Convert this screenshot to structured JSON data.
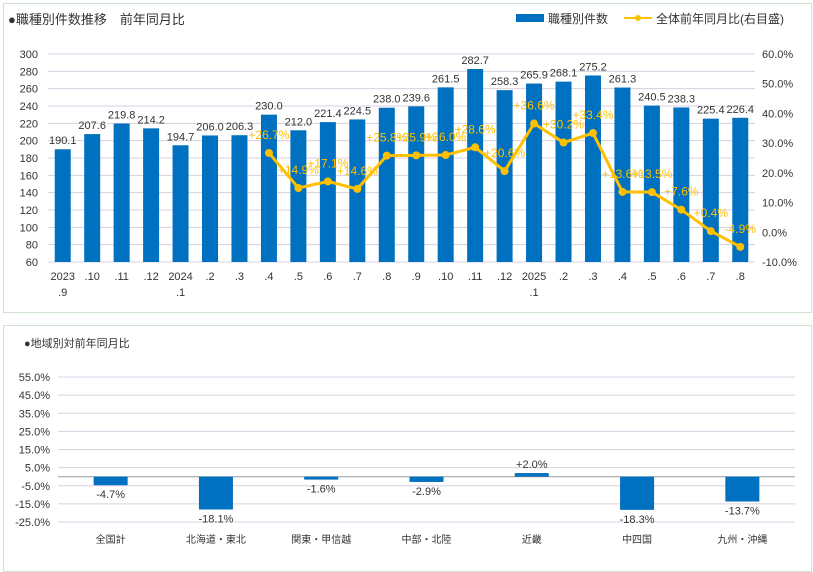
{
  "chart_data": [
    {
      "type": "bar+line",
      "title": "●職種別件数推移　前年同月比",
      "legend": [
        "職種別件数",
        "全体前年同月比(右目盛)"
      ],
      "legend_position": "top-right",
      "categories": [
        "2023\n.9",
        ".10",
        ".11",
        ".12",
        "2024\n.1",
        ".2",
        ".3",
        ".4",
        ".5",
        ".6",
        ".7",
        ".8",
        ".9",
        ".10",
        ".11",
        ".12",
        "2025\n.1",
        ".2",
        ".3",
        ".4",
        ".5",
        ".6",
        ".7",
        ".8"
      ],
      "bar_values": [
        190.1,
        207.6,
        219.8,
        214.2,
        194.7,
        206.0,
        206.3,
        230.0,
        212.0,
        221.4,
        224.5,
        238.0,
        239.6,
        261.5,
        282.7,
        258.3,
        265.9,
        268.1,
        275.2,
        261.3,
        240.5,
        238.3,
        225.4,
        226.4
      ],
      "line_values": [
        null,
        null,
        null,
        null,
        null,
        null,
        null,
        26.7,
        14.9,
        17.1,
        14.6,
        25.8,
        25.9,
        26.0,
        28.6,
        20.6,
        36.6,
        30.2,
        33.4,
        13.6,
        13.5,
        7.6,
        0.4,
        -4.9
      ],
      "ylim": [
        60,
        300
      ],
      "yticks": [
        60,
        80,
        100,
        120,
        140,
        160,
        180,
        200,
        220,
        240,
        260,
        280,
        300
      ],
      "y2lim": [
        -10,
        60
      ],
      "y2ticks": [
        "-10.0%",
        "0.0%",
        "10.0%",
        "20.0%",
        "30.0%",
        "40.0%",
        "50.0%",
        "60.0%"
      ],
      "colors": {
        "bar": "#0070c0",
        "line": "#ffc000"
      },
      "grid": true
    },
    {
      "type": "bar",
      "title": "●地域別対前年同月比",
      "categories": [
        "全国計",
        "北海道・東北",
        "関東・甲信越",
        "中部・北陸",
        "近畿",
        "中四国",
        "九州・沖縄"
      ],
      "values": [
        -4.7,
        -18.1,
        -1.6,
        -2.9,
        2.0,
        -18.3,
        -13.7
      ],
      "labels": [
        "-4.7%",
        "-18.1%",
        "-1.6%",
        "-2.9%",
        "+2.0%",
        "-18.3%",
        "-13.7%"
      ],
      "ylim": [
        -25,
        55
      ],
      "yticks": [
        "-25.0%",
        "-15.0%",
        "-5.0%",
        "5.0%",
        "15.0%",
        "25.0%",
        "35.0%",
        "45.0%",
        "55.0%"
      ],
      "colors": {
        "bar": "#0070c0"
      },
      "grid": true
    }
  ]
}
